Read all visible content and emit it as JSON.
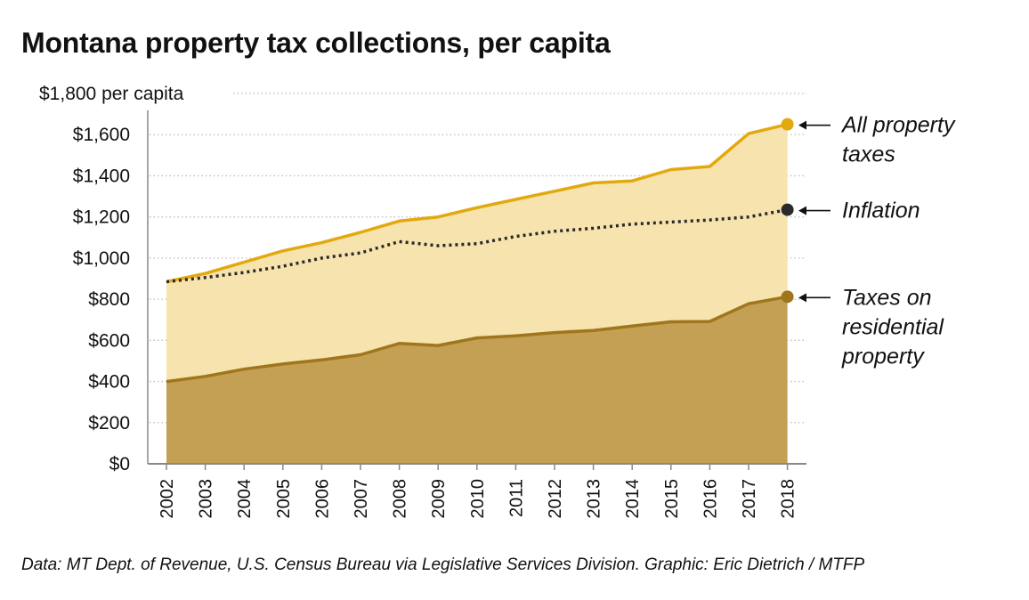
{
  "title": "Montana property tax collections, per capita",
  "source": "Data: MT Dept. of Revenue, U.S. Census Bureau via Legislative Services Division. Graphic: Eric Dietrich / MTFP",
  "colors": {
    "all_line": "#e2a90f",
    "all_fill": "#f7e3ae",
    "res_line": "#a0761d",
    "res_fill": "#c4a055",
    "inflation": "#2a2a2a",
    "grid": "#bdbdbd",
    "axis": "#888888"
  },
  "chart_data": {
    "type": "area",
    "x": [
      "2002",
      "2003",
      "2004",
      "2005",
      "2006",
      "2007",
      "2008",
      "2009",
      "2010",
      "2011",
      "2012",
      "2013",
      "2014",
      "2015",
      "2016",
      "2017",
      "2018"
    ],
    "ylim": [
      0,
      1800
    ],
    "y_ticks": [
      0,
      200,
      400,
      600,
      800,
      1000,
      1200,
      1400,
      1600,
      1800
    ],
    "y_tick_labels": [
      "$0",
      "$200",
      "$400",
      "$600",
      "$800",
      "$1,000",
      "$1,200",
      "$1,400",
      "$1,600",
      "$1,800 per capita"
    ],
    "grid": true,
    "series": [
      {
        "name": "All property taxes",
        "style": "area-line",
        "values": [
          885,
          925,
          980,
          1035,
          1075,
          1125,
          1180,
          1200,
          1245,
          1285,
          1325,
          1365,
          1375,
          1430,
          1445,
          1605,
          1650
        ]
      },
      {
        "name": "Inflation",
        "style": "dotted-line",
        "values": [
          885,
          905,
          930,
          960,
          1000,
          1025,
          1080,
          1060,
          1070,
          1105,
          1130,
          1145,
          1165,
          1175,
          1185,
          1200,
          1235
        ]
      },
      {
        "name": "Taxes on residential property",
        "style": "area-line",
        "values": [
          400,
          425,
          460,
          485,
          505,
          530,
          585,
          575,
          612,
          622,
          638,
          648,
          670,
          690,
          692,
          778,
          812
        ]
      }
    ],
    "annotations": [
      {
        "series": "All property taxes",
        "lines": [
          "All property",
          "taxes"
        ]
      },
      {
        "series": "Inflation",
        "lines": [
          "Inflation"
        ]
      },
      {
        "series": "Taxes on residential property",
        "lines": [
          "Taxes on",
          "residential",
          "property"
        ]
      }
    ]
  }
}
